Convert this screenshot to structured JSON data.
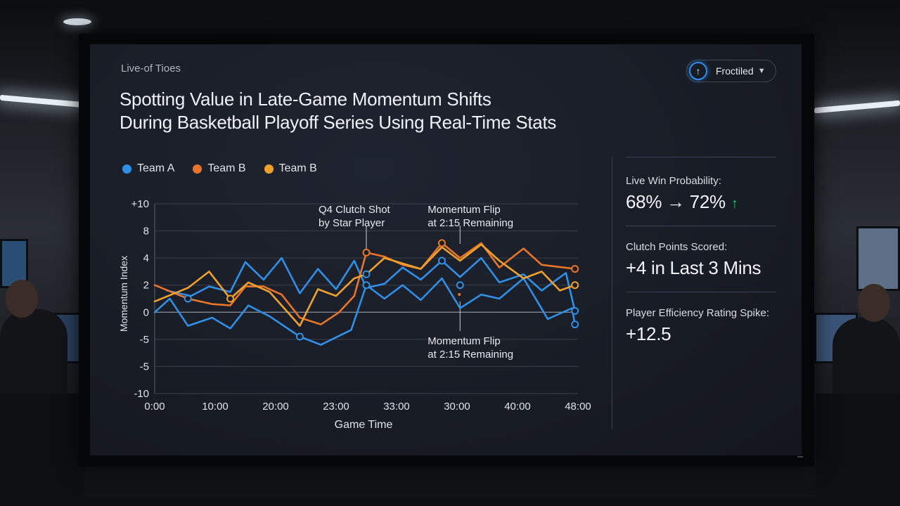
{
  "source_label": "Live-of Tioes",
  "headline": {
    "line1": "Spotting Value in Late-Game Momentum Shifts",
    "line2": "During Basketball Playoff Series Using Real-Time Stats"
  },
  "filter_button": {
    "label": "Froctiled",
    "icon": "arrow-up-icon",
    "accent": "#2f8cf0"
  },
  "stats": [
    {
      "label": "Live Win Probability:",
      "value": "68% → 72%",
      "trend": "↑",
      "trend_color": "#28c76f"
    },
    {
      "label": "Clutch Points Scored:",
      "value": "+4 in Last 3 Mins"
    },
    {
      "label": "Player Efficiency Rating Spike:",
      "value": "+12.5"
    }
  ],
  "chart_data": {
    "type": "line",
    "xlabel": "Game Time",
    "ylabel": "Momentum Index",
    "x_ticks": [
      "0:00",
      "10:00",
      "20:00",
      "23:00",
      "33:00",
      "30:00",
      "40:00",
      "48:00"
    ],
    "y_ticks": [
      "+10",
      "8",
      "4",
      "2",
      "0",
      "-5",
      "-5",
      "-10"
    ],
    "grid": true,
    "legend": [
      {
        "name": "Team A",
        "color": "#2f8fe6"
      },
      {
        "name": "Team B",
        "color": "#e8742a"
      },
      {
        "name": "Team B",
        "color": "#f0a12c"
      }
    ],
    "series": [
      {
        "name": "Team A",
        "color": "#2f8fe6",
        "points": [
          [
            0,
            0
          ],
          [
            2.5,
            1
          ],
          [
            5.5,
            -1
          ],
          [
            9.5,
            -0.4
          ],
          [
            12.5,
            -1.2
          ],
          [
            15.5,
            0.5
          ],
          [
            19,
            -0.3
          ],
          [
            24,
            -1.8
          ],
          [
            27.5,
            -2.4
          ],
          [
            32.5,
            -1.3
          ],
          [
            35,
            2
          ],
          [
            38,
            1
          ],
          [
            41,
            2
          ],
          [
            44,
            0.9
          ],
          [
            47.5,
            2.5
          ],
          [
            50.5,
            0.3
          ],
          [
            54,
            1.3
          ],
          [
            57,
            1
          ],
          [
            61,
            2.5
          ],
          [
            65,
            -0.5
          ],
          [
            69,
            0.3
          ],
          [
            69.5,
            -0.9
          ]
        ]
      },
      {
        "name": "Team A (2)",
        "color": "#2f8fe6",
        "points": [
          [
            2,
            1.6
          ],
          [
            6,
            1.2
          ],
          [
            9,
            1.9
          ],
          [
            12.5,
            1.5
          ],
          [
            15,
            3.7
          ],
          [
            18,
            2.4
          ],
          [
            21,
            4
          ],
          [
            24,
            1.4
          ],
          [
            27,
            3.2
          ],
          [
            30,
            1.7
          ],
          [
            33,
            3.8
          ],
          [
            35,
            1.8
          ],
          [
            38,
            2.1
          ],
          [
            41,
            3.3
          ],
          [
            44,
            2.4
          ],
          [
            47.5,
            3.8
          ],
          [
            50.5,
            2.6
          ],
          [
            54,
            4
          ],
          [
            57,
            2.2
          ],
          [
            61,
            2.8
          ],
          [
            64,
            1.6
          ],
          [
            68,
            2.9
          ],
          [
            69.5,
            0.1
          ]
        ]
      },
      {
        "name": "Team B",
        "color": "#e8742a",
        "points": [
          [
            0,
            2
          ],
          [
            5.5,
            1
          ],
          [
            9.5,
            0.6
          ],
          [
            12.5,
            0.5
          ],
          [
            15,
            1.9
          ],
          [
            18,
            1.9
          ],
          [
            21,
            1.3
          ],
          [
            24,
            -0.4
          ],
          [
            27.5,
            -0.9
          ],
          [
            30.5,
            0
          ],
          [
            33,
            1.2
          ],
          [
            35,
            4.4
          ],
          [
            38,
            4.1
          ],
          [
            41,
            3.5
          ],
          [
            44,
            3.2
          ],
          [
            47.5,
            5.1
          ],
          [
            50.5,
            4
          ],
          [
            54,
            5.1
          ],
          [
            57,
            3.3
          ],
          [
            61,
            4.7
          ],
          [
            64,
            3.5
          ],
          [
            69.5,
            3.2
          ]
        ]
      },
      {
        "name": "Team B (2)",
        "color": "#f0a12c",
        "points": [
          [
            0,
            0.8
          ],
          [
            5.5,
            1.8
          ],
          [
            9,
            3
          ],
          [
            12.5,
            1
          ],
          [
            15.5,
            2.2
          ],
          [
            19,
            1.5
          ],
          [
            24,
            -1
          ],
          [
            27,
            1.7
          ],
          [
            30,
            1.2
          ],
          [
            33,
            2.5
          ],
          [
            35,
            2.8
          ],
          [
            38,
            4
          ],
          [
            41,
            3.6
          ],
          [
            44,
            3.2
          ],
          [
            47.5,
            4.8
          ],
          [
            50.5,
            3.8
          ],
          [
            54,
            5
          ],
          [
            57,
            3.8
          ],
          [
            61,
            2.5
          ],
          [
            64,
            3
          ],
          [
            67,
            1.6
          ],
          [
            69.5,
            2
          ]
        ]
      }
    ],
    "annotations": [
      {
        "text_line1": "Q4 Clutch Shot",
        "text_line2": "by Star Player",
        "x": 35
      },
      {
        "text_line1": "Momentum Flip",
        "text_line2": "at 2:15 Remaining",
        "x": 50.5
      },
      {
        "text_line1": "Momentum Flip",
        "text_line2": "at 2:15 Remaining",
        "x": 50.5
      }
    ]
  }
}
